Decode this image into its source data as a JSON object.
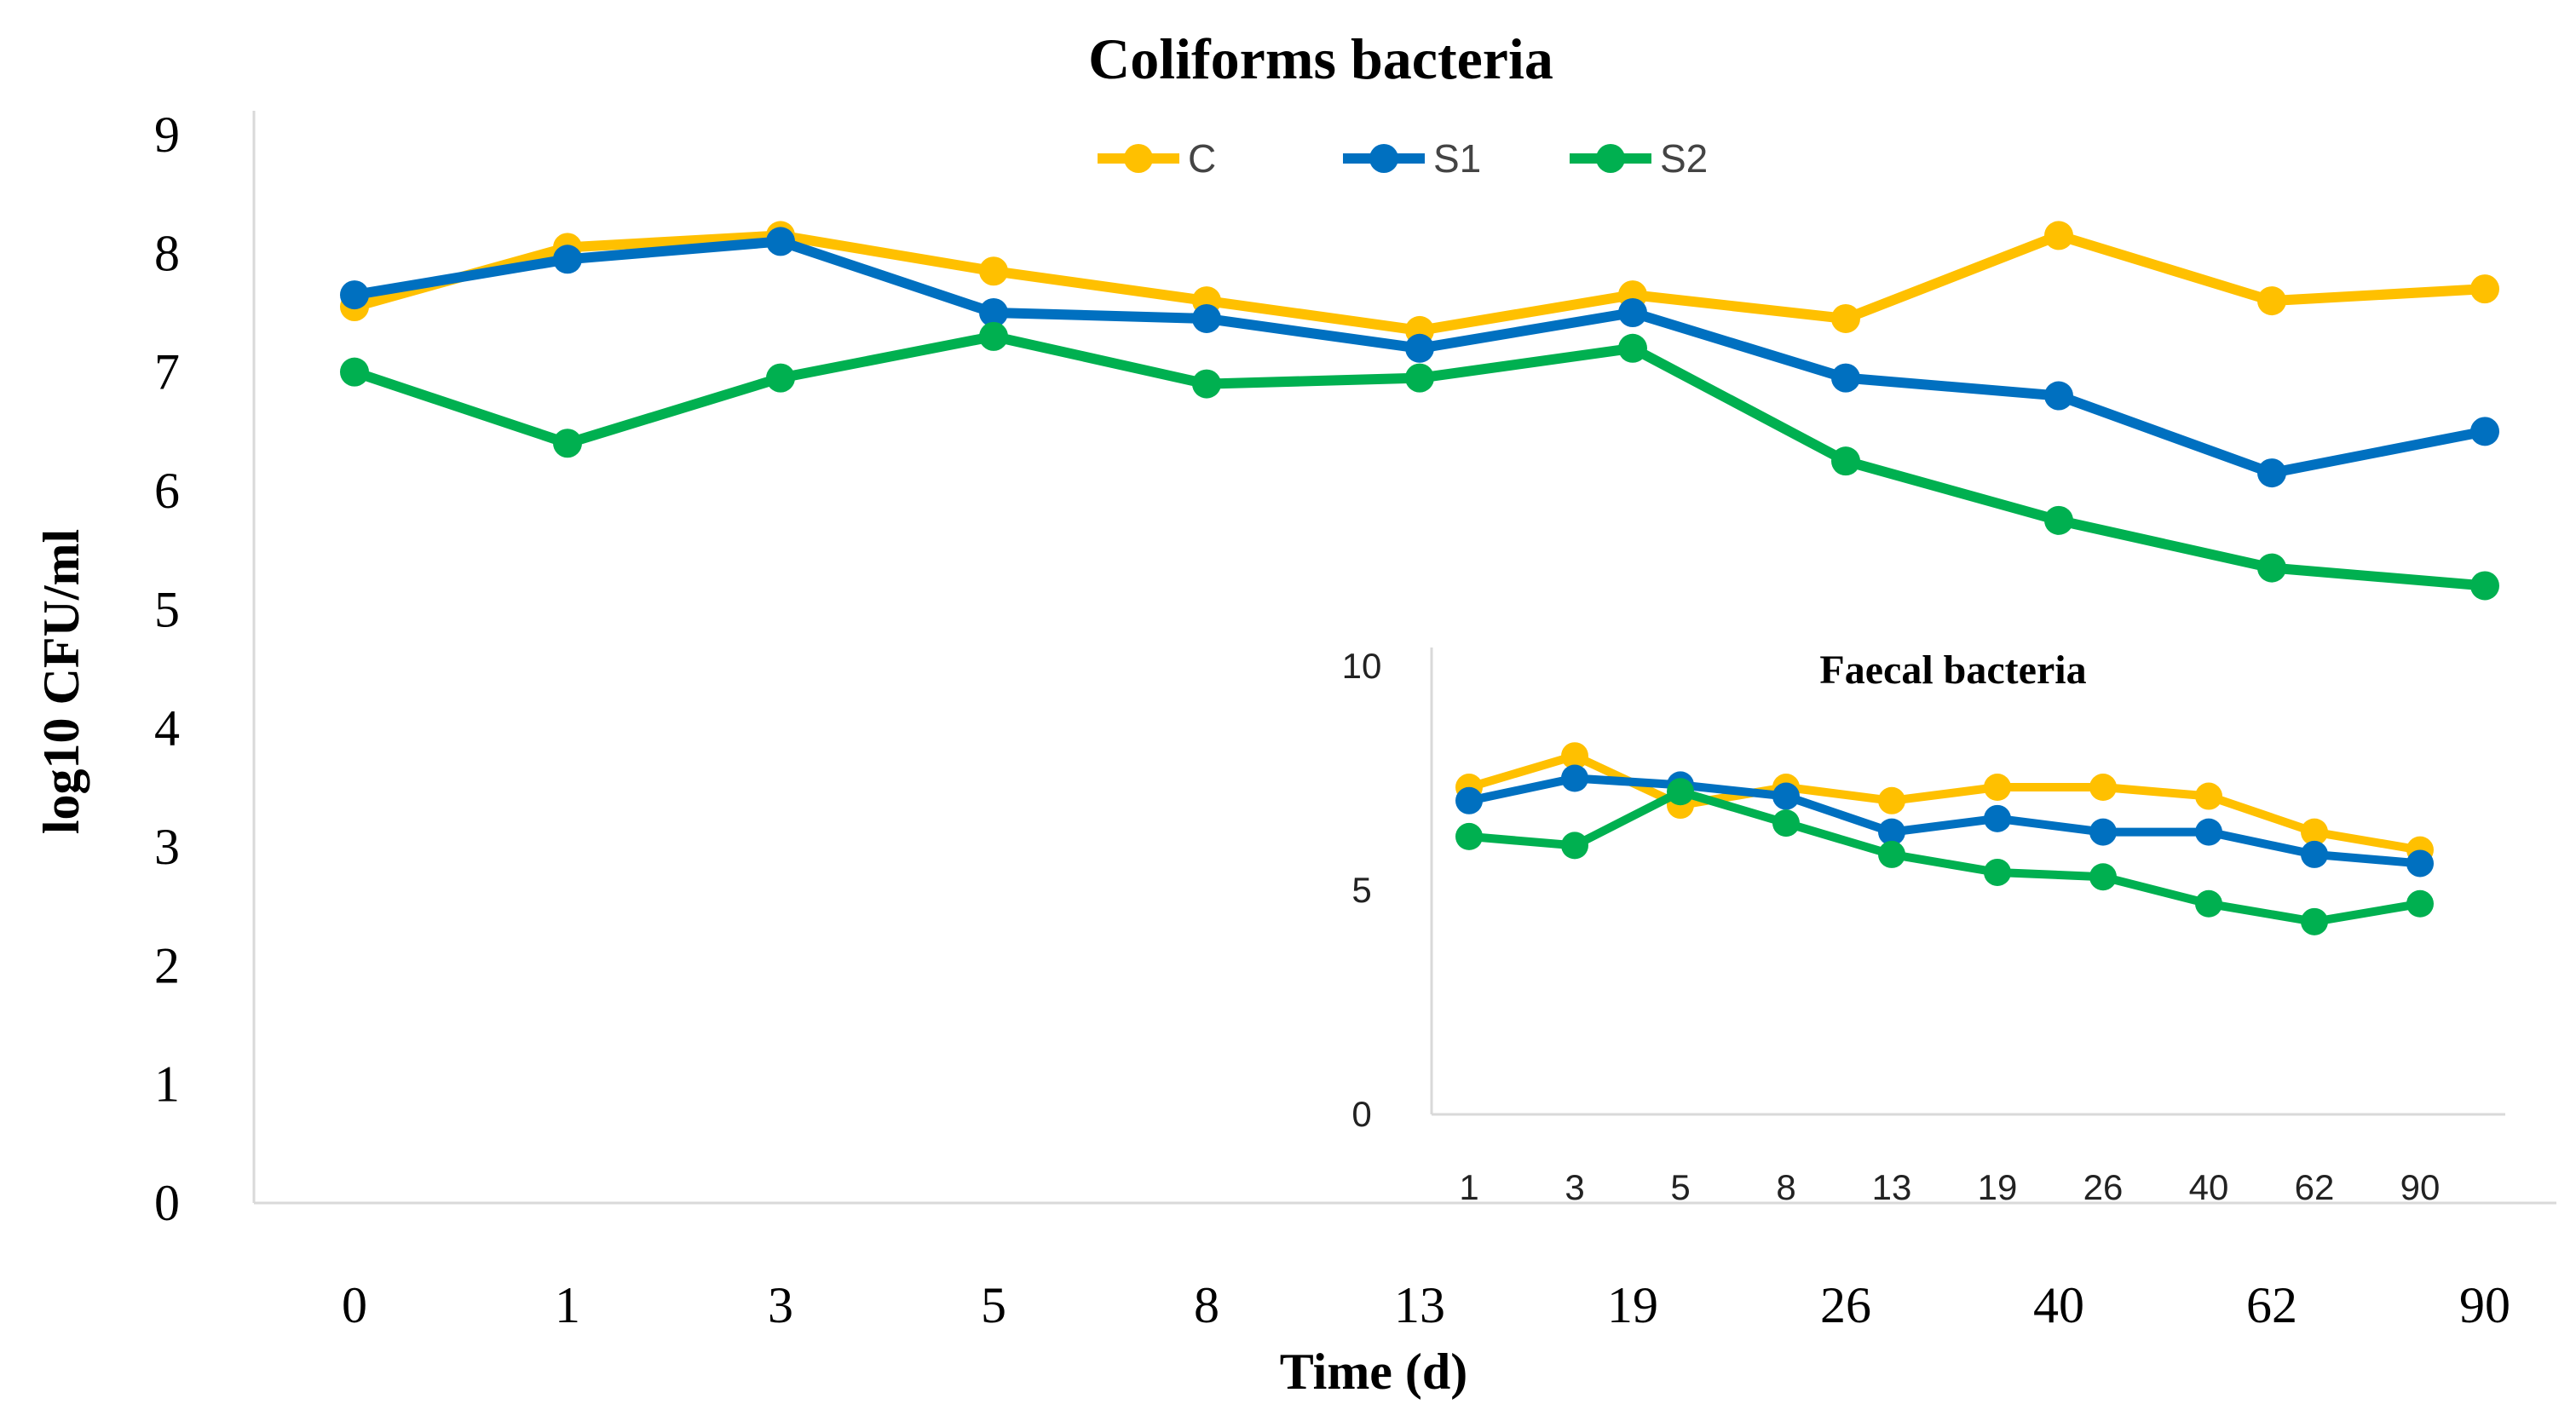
{
  "chart_data": [
    {
      "type": "line",
      "title": "Coliforms bacteria",
      "xlabel": "Time (d)",
      "ylabel": "log10 CFU/ml",
      "categories": [
        "0",
        "1",
        "3",
        "5",
        "8",
        "13",
        "19",
        "26",
        "40",
        "62",
        "90"
      ],
      "ylim": [
        0,
        9
      ],
      "yticks": [
        "0",
        "1",
        "2",
        "3",
        "4",
        "5",
        "6",
        "7",
        "8",
        "9"
      ],
      "grid": false,
      "legend": "top-center",
      "series": [
        {
          "name": "C",
          "color": "#FFC000",
          "values": [
            7.55,
            8.05,
            8.15,
            7.85,
            7.6,
            7.35,
            7.65,
            7.45,
            8.15,
            7.6,
            7.7
          ]
        },
        {
          "name": "S1",
          "color": "#0070C0",
          "values": [
            7.65,
            7.95,
            8.1,
            7.5,
            7.45,
            7.2,
            7.5,
            6.95,
            6.8,
            6.15,
            6.5
          ]
        },
        {
          "name": "S2",
          "color": "#00B050",
          "values": [
            7.0,
            6.4,
            6.95,
            7.3,
            6.9,
            6.95,
            7.2,
            6.25,
            5.75,
            5.35,
            5.2
          ]
        }
      ]
    },
    {
      "type": "line",
      "title": "Faecal bacteria",
      "categories": [
        "1",
        "3",
        "5",
        "8",
        "13",
        "19",
        "26",
        "40",
        "62",
        "90"
      ],
      "ylim": [
        0,
        10
      ],
      "yticks": [
        "0",
        "5",
        "10"
      ],
      "grid": false,
      "series": [
        {
          "color": "#FFC000",
          "values": [
            7.3,
            8.0,
            6.9,
            7.3,
            7.0,
            7.3,
            7.3,
            7.1,
            6.3,
            5.9
          ]
        },
        {
          "color": "#0070C0",
          "values": [
            7.0,
            7.5,
            7.35,
            7.1,
            6.3,
            6.6,
            6.3,
            6.3,
            5.8,
            5.6
          ]
        },
        {
          "color": "#00B050",
          "values": [
            6.2,
            6.0,
            7.2,
            6.5,
            5.8,
            5.4,
            5.3,
            4.7,
            4.3,
            4.7
          ]
        }
      ]
    }
  ]
}
